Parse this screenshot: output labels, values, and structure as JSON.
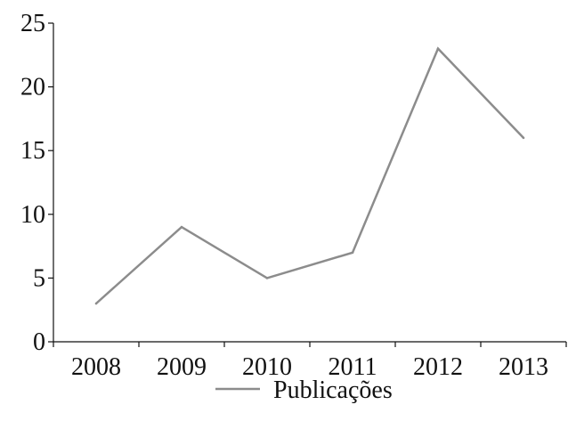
{
  "chart_data": {
    "type": "line",
    "categories": [
      "2008",
      "2009",
      "2010",
      "2011",
      "2012",
      "2013"
    ],
    "series": [
      {
        "name": "Publicações",
        "values": [
          3,
          9,
          5,
          7,
          23,
          16
        ],
        "color": "#8c8c8c"
      }
    ],
    "ylim": [
      0,
      25
    ],
    "yticks": [
      0,
      5,
      10,
      15,
      20,
      25
    ],
    "grid": false,
    "legend_position": "bottom",
    "axis_color": "#111111"
  }
}
